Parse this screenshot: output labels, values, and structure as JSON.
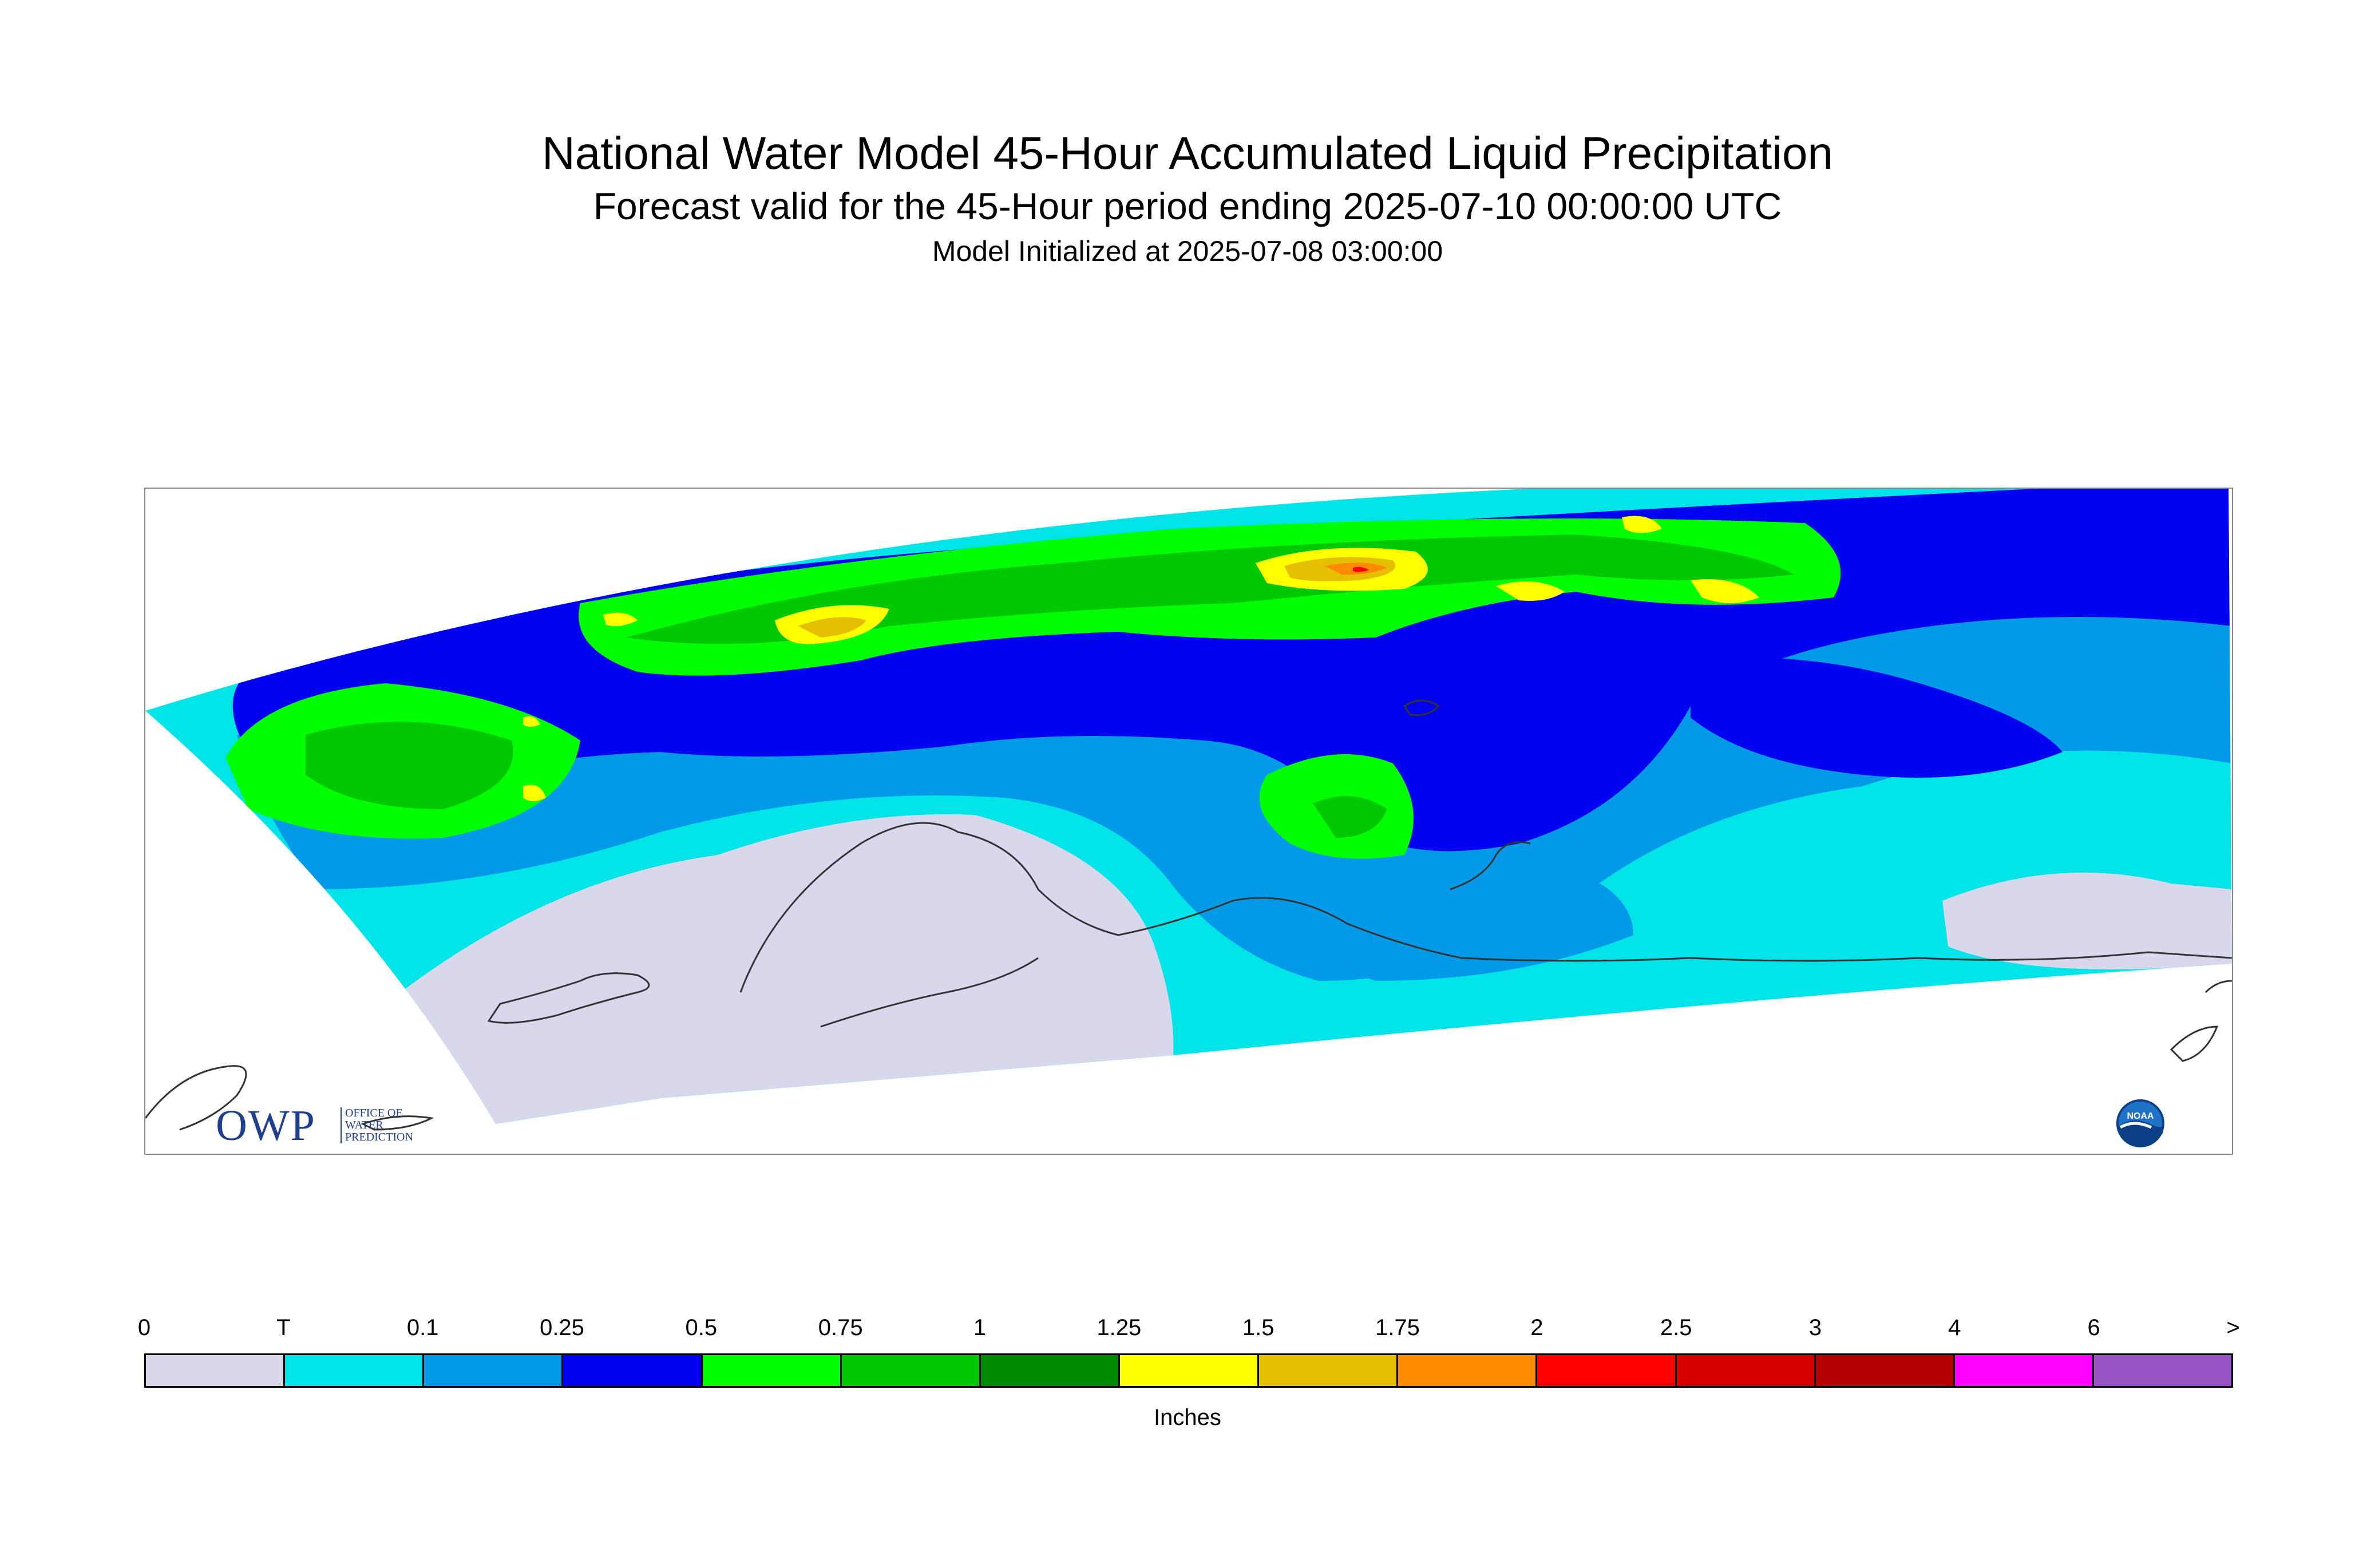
{
  "title": "National Water Model 45-Hour Accumulated Liquid Precipitation",
  "subtitle": "Forecast valid for the 45-Hour period ending 2025-07-10 00:00:00 UTC",
  "init_line": "Model Initialized at 2025-07-08 03:00:00",
  "owp_logo": {
    "letters": "OWP",
    "text": "OFFICE OF\nWATER\nPREDICTION"
  },
  "noaa_logo": {
    "text": "NOAA"
  },
  "legend": {
    "units": "Inches",
    "labels": [
      "0",
      "T",
      "0.1",
      "0.25",
      "0.5",
      "0.75",
      "1",
      "1.25",
      "1.5",
      "1.75",
      "2",
      "2.5",
      "3",
      "4",
      "6",
      ">"
    ],
    "colors": [
      "#d8d8ec",
      "#00e4e8",
      "#009ae8",
      "#0000f0",
      "#00ff00",
      "#00c800",
      "#008c00",
      "#ffff00",
      "#e6bf00",
      "#ff8c00",
      "#ff0000",
      "#d60000",
      "#b40000",
      "#ff00ff",
      "#9955c8"
    ]
  },
  "map_colors": {
    "trace": "#00e4e8",
    "light": "#009ae8",
    "moderate": "#0000f0",
    "heavy": "#00ff00",
    "heavier": "#00c800",
    "heaviest_green": "#008c00",
    "yellow": "#ffff00",
    "gold": "#e6bf00",
    "orange": "#ff8c00",
    "red": "#ff0000",
    "none": "#d8d8ec",
    "coastline": "#333333"
  }
}
